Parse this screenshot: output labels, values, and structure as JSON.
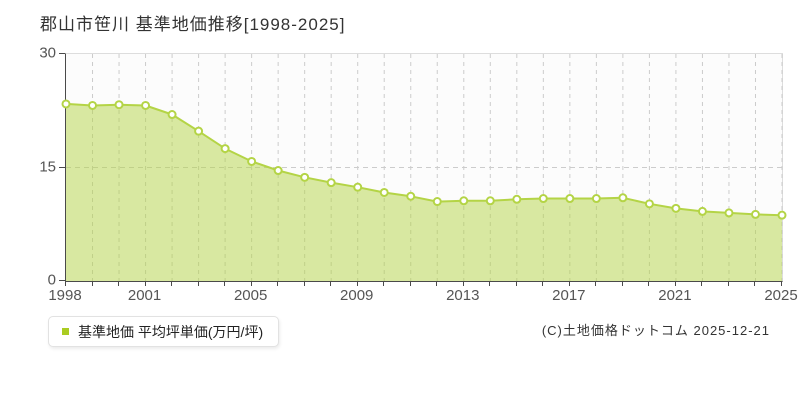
{
  "title": "郡山市笹川 基準地価推移[1998-2025]",
  "legend": {
    "label": "基準地価 平均坪単価(万円/坪)",
    "marker_color": "#aacc22"
  },
  "footer": {
    "copyright": "(C)土地価格ドットコム 2025-12-21"
  },
  "chart_data": {
    "type": "area",
    "title": "郡山市笹川 基準地価推移[1998-2025]",
    "series_name": "基準地価",
    "ylabel": "平均坪単価(万円/坪)",
    "x": [
      1998,
      1999,
      2000,
      2001,
      2002,
      2003,
      2004,
      2005,
      2006,
      2007,
      2008,
      2009,
      2010,
      2011,
      2012,
      2013,
      2014,
      2015,
      2016,
      2017,
      2018,
      2019,
      2020,
      2021,
      2022,
      2023,
      2024,
      2025
    ],
    "values": [
      23.4,
      23.2,
      23.3,
      23.2,
      22.0,
      19.8,
      17.5,
      15.8,
      14.6,
      13.7,
      13.0,
      12.4,
      11.7,
      11.2,
      10.5,
      10.6,
      10.6,
      10.8,
      10.9,
      10.9,
      10.9,
      11.0,
      10.2,
      9.6,
      9.2,
      9.0,
      8.8,
      8.7
    ],
    "xlim": [
      1998,
      2025
    ],
    "ylim": [
      0,
      30
    ],
    "yticks": [
      0,
      15,
      30
    ],
    "xticks_labeled": [
      1998,
      2001,
      2005,
      2009,
      2013,
      2017,
      2021,
      2025
    ],
    "grid": "dashed",
    "legend_position": "bottom-left",
    "colors": {
      "line": "#b4d446",
      "fill": "rgba(180,212,70,0.5)",
      "marker_fill": "#ffffff",
      "gridline": "#cccccc",
      "axis": "#4a4a4a",
      "tick_text": "#555555"
    }
  }
}
